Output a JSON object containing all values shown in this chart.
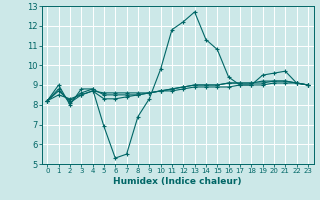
{
  "title": "",
  "xlabel": "Humidex (Indice chaleur)",
  "background_color": "#cce8e8",
  "grid_color": "#ffffff",
  "line_color": "#006666",
  "xlim": [
    -0.5,
    23.5
  ],
  "ylim": [
    5,
    13
  ],
  "yticks": [
    5,
    6,
    7,
    8,
    9,
    10,
    11,
    12,
    13
  ],
  "xticks": [
    0,
    1,
    2,
    3,
    4,
    5,
    6,
    7,
    8,
    9,
    10,
    11,
    12,
    13,
    14,
    15,
    16,
    17,
    18,
    19,
    20,
    21,
    22,
    23
  ],
  "xtick_labels": [
    "0",
    "1",
    "2",
    "3",
    "4",
    "5",
    "6",
    "7",
    "8",
    "9",
    "10",
    "11",
    "12",
    "13",
    "14",
    "15",
    "16",
    "17",
    "18",
    "19",
    "20",
    "21",
    "22",
    "23"
  ],
  "series": [
    [
      8.2,
      9.0,
      8.0,
      8.8,
      8.8,
      6.9,
      5.3,
      5.5,
      7.4,
      8.3,
      9.8,
      11.8,
      12.2,
      12.7,
      11.3,
      10.8,
      9.4,
      9.0,
      9.0,
      9.5,
      9.6,
      9.7,
      9.1,
      9.0
    ],
    [
      8.2,
      8.8,
      8.1,
      8.5,
      8.7,
      8.3,
      8.3,
      8.4,
      8.5,
      8.6,
      8.7,
      8.8,
      8.9,
      9.0,
      9.0,
      9.0,
      9.1,
      9.1,
      9.1,
      9.2,
      9.2,
      9.2,
      9.1,
      9.0
    ],
    [
      8.2,
      8.5,
      8.3,
      8.5,
      8.7,
      8.6,
      8.6,
      8.6,
      8.6,
      8.6,
      8.7,
      8.7,
      8.8,
      8.9,
      8.9,
      8.9,
      8.9,
      9.0,
      9.0,
      9.0,
      9.1,
      9.1,
      9.1,
      9.0
    ],
    [
      8.2,
      8.7,
      8.2,
      8.6,
      8.8,
      8.5,
      8.5,
      8.5,
      8.5,
      8.6,
      8.7,
      8.8,
      8.9,
      9.0,
      9.0,
      9.0,
      9.1,
      9.1,
      9.1,
      9.1,
      9.2,
      9.2,
      9.1,
      9.0
    ]
  ]
}
